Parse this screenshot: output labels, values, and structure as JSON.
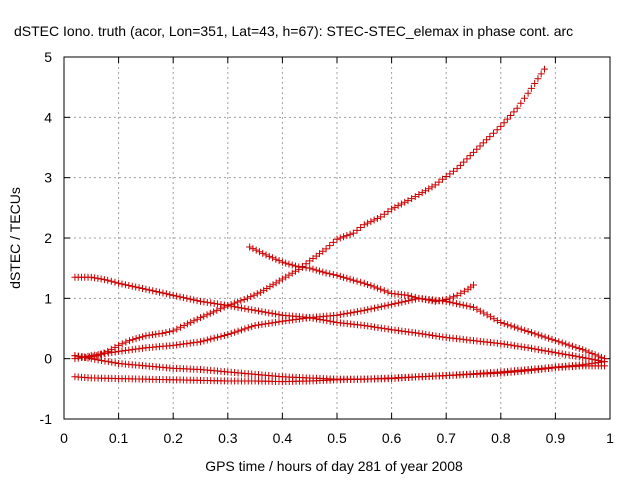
{
  "chart_data": {
    "type": "scatter",
    "title": "dSTEC Iono. truth (acor, Lon=351, Lat=43, h=67): STEC-STEC_elemax in phase cont. arc",
    "xlabel": "GPS time / hours of day 281 of year 2008",
    "ylabel": "dSTEC  / TECUs",
    "xlim": [
      0,
      1
    ],
    "ylim": [
      -1,
      5
    ],
    "x_ticks": [
      "0",
      "0.1",
      "0.2",
      "0.3",
      "0.4",
      "0.5",
      "0.6",
      "0.7",
      "0.8",
      "0.9",
      "1"
    ],
    "y_ticks": [
      "-1",
      "0",
      "1",
      "2",
      "3",
      "4",
      "5"
    ],
    "grid": true,
    "legend": "none",
    "marker": "plus",
    "color": "#cc0000",
    "series": [
      {
        "x": [
          0.02,
          0.05,
          0.08,
          0.1,
          0.15,
          0.2,
          0.25,
          0.3,
          0.35,
          0.4,
          0.45,
          0.5,
          0.55,
          0.6,
          0.65,
          0.7,
          0.75,
          0.8,
          0.85,
          0.9,
          0.95,
          0.99
        ],
        "y": [
          1.35,
          1.35,
          1.3,
          1.25,
          1.15,
          1.05,
          0.95,
          0.88,
          0.8,
          0.72,
          0.68,
          0.6,
          0.55,
          0.48,
          0.42,
          0.35,
          0.3,
          0.25,
          0.18,
          0.1,
          0.02,
          -0.05
        ]
      },
      {
        "x": [
          0.02,
          0.05,
          0.1,
          0.15,
          0.2,
          0.25,
          0.3,
          0.35,
          0.4,
          0.45,
          0.5,
          0.55,
          0.6,
          0.65,
          0.7,
          0.75,
          0.8,
          0.85,
          0.9,
          0.95,
          0.99
        ],
        "y": [
          -0.3,
          -0.32,
          -0.33,
          -0.34,
          -0.35,
          -0.36,
          -0.37,
          -0.37,
          -0.38,
          -0.37,
          -0.35,
          -0.34,
          -0.32,
          -0.3,
          -0.28,
          -0.26,
          -0.24,
          -0.2,
          -0.15,
          -0.12,
          -0.12
        ]
      },
      {
        "x": [
          0.02,
          0.05,
          0.1,
          0.15,
          0.2,
          0.25,
          0.3,
          0.35,
          0.4,
          0.45,
          0.5,
          0.55,
          0.6,
          0.65,
          0.7,
          0.75,
          0.8,
          0.85,
          0.9,
          0.95,
          0.99
        ],
        "y": [
          0.0,
          0.05,
          0.12,
          0.18,
          0.22,
          0.28,
          0.4,
          0.55,
          0.62,
          0.68,
          0.72,
          0.8,
          0.9,
          1.0,
          0.95,
          0.85,
          0.6,
          0.45,
          0.3,
          0.15,
          0.0
        ]
      },
      {
        "x": [
          0.02,
          0.05,
          0.1,
          0.15,
          0.2,
          0.25,
          0.3,
          0.35,
          0.4,
          0.45,
          0.5,
          0.55,
          0.6,
          0.65,
          0.7,
          0.75,
          0.8,
          0.85,
          0.9,
          0.95,
          0.99
        ],
        "y": [
          0.05,
          0.0,
          -0.08,
          -0.12,
          -0.16,
          -0.18,
          -0.22,
          -0.26,
          -0.3,
          -0.32,
          -0.34,
          -0.34,
          -0.33,
          -0.3,
          -0.28,
          -0.25,
          -0.22,
          -0.18,
          -0.14,
          -0.1,
          -0.05
        ]
      },
      {
        "x": [
          0.02,
          0.04,
          0.06,
          0.08,
          0.1,
          0.12,
          0.15,
          0.18,
          0.2,
          0.22,
          0.25,
          0.28,
          0.3,
          0.33,
          0.36,
          0.4,
          0.43,
          0.45,
          0.48,
          0.5,
          0.53,
          0.55,
          0.58,
          0.6,
          0.63,
          0.65,
          0.68,
          0.7,
          0.72,
          0.75,
          0.78,
          0.8,
          0.83,
          0.85,
          0.88
        ],
        "y": [
          0.05,
          0.02,
          0.05,
          0.12,
          0.22,
          0.3,
          0.38,
          0.42,
          0.46,
          0.55,
          0.68,
          0.8,
          0.88,
          0.98,
          1.1,
          1.32,
          1.48,
          1.62,
          1.82,
          1.98,
          2.08,
          2.22,
          2.35,
          2.48,
          2.62,
          2.72,
          2.88,
          3.02,
          3.15,
          3.42,
          3.68,
          3.85,
          4.15,
          4.4,
          4.8
        ]
      },
      {
        "x": [
          0.34,
          0.37,
          0.4,
          0.43,
          0.45,
          0.48,
          0.5,
          0.53,
          0.55,
          0.58,
          0.6,
          0.63,
          0.65,
          0.68,
          0.7,
          0.72,
          0.74,
          0.75
        ],
        "y": [
          1.85,
          1.72,
          1.6,
          1.52,
          1.5,
          1.42,
          1.38,
          1.3,
          1.25,
          1.15,
          1.08,
          1.05,
          1.0,
          0.95,
          0.98,
          1.05,
          1.15,
          1.22
        ]
      }
    ]
  }
}
